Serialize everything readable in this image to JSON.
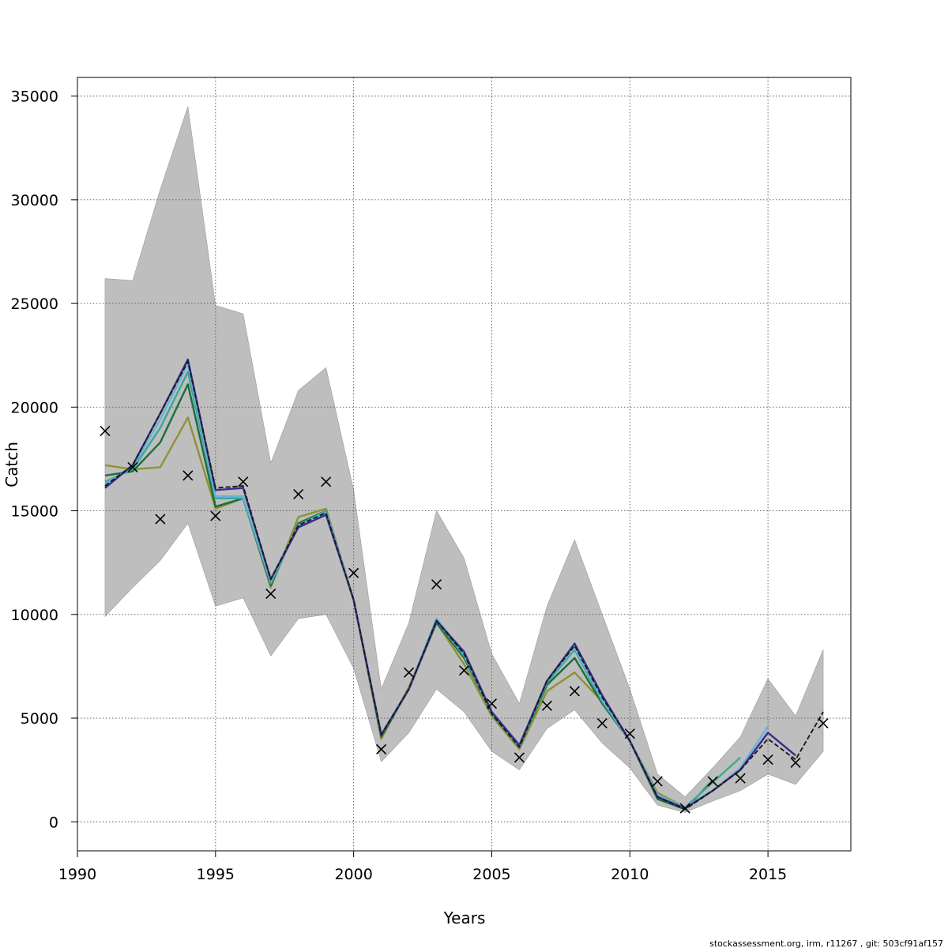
{
  "chart_data": {
    "type": "line",
    "title": "",
    "xlabel": "Years",
    "ylabel": "Catch",
    "xlim": [
      1990,
      2018
    ],
    "ylim": [
      -1400,
      35900
    ],
    "xticks": [
      1990,
      1995,
      2000,
      2005,
      2010,
      2015
    ],
    "yticks": [
      0,
      5000,
      10000,
      15000,
      20000,
      25000,
      30000,
      35000
    ],
    "grid": true,
    "band": {
      "x": [
        1991,
        1992,
        1993,
        1994,
        1995,
        1996,
        1997,
        1998,
        1999,
        2000,
        2001,
        2002,
        2003,
        2004,
        2005,
        2006,
        2007,
        2008,
        2009,
        2010,
        2011,
        2012,
        2013,
        2014,
        2015,
        2016,
        2017
      ],
      "upper": [
        26200,
        26100,
        30500,
        34500,
        24900,
        24500,
        17300,
        20800,
        21900,
        16000,
        6400,
        9600,
        15000,
        12700,
        8100,
        5700,
        10400,
        13600,
        10000,
        6400,
        2300,
        1200,
        2600,
        4100,
        6900,
        5100,
        8300
      ],
      "lower": [
        9900,
        11300,
        12600,
        14400,
        10400,
        10800,
        8000,
        9800,
        10000,
        7400,
        2900,
        4300,
        6400,
        5300,
        3400,
        2500,
        4500,
        5400,
        3800,
        2600,
        800,
        450,
        1000,
        1500,
        2300,
        1800,
        3400
      ],
      "color": "#bebebe"
    },
    "observed": {
      "x": [
        1991,
        1992,
        1993,
        1994,
        1995,
        1996,
        1997,
        1998,
        1999,
        2000,
        2001,
        2002,
        2003,
        2004,
        2005,
        2006,
        2007,
        2008,
        2009,
        2010,
        2011,
        2012,
        2013,
        2014,
        2015,
        2016,
        2017
      ],
      "y": [
        18850,
        17100,
        14600,
        16700,
        14750,
        16400,
        11000,
        15800,
        16400,
        12000,
        3500,
        7200,
        11450,
        7300,
        5700,
        3100,
        5600,
        6300,
        4750,
        4250,
        1950,
        650,
        1950,
        2100,
        3000,
        2850,
        4750
      ]
    },
    "series": [
      {
        "color": "#1a1a1a",
        "dashed": true,
        "x": [
          1991,
          1992,
          1993,
          1994,
          1995,
          1996,
          1997,
          1998,
          1999,
          2000,
          2001,
          2002,
          2003,
          2004,
          2005,
          2006,
          2007,
          2008,
          2009,
          2010,
          2011,
          2012,
          2013,
          2014,
          2015,
          2016,
          2017
        ],
        "y": [
          16200,
          17200,
          19700,
          22200,
          16100,
          16200,
          11700,
          14300,
          14900,
          10700,
          4200,
          6400,
          9700,
          8100,
          5200,
          3600,
          6800,
          8500,
          6000,
          3900,
          1200,
          600,
          1500,
          2500,
          4000,
          3000,
          5300
        ]
      },
      {
        "color": "#3a2c8c",
        "x": [
          1991,
          1992,
          1993,
          1994,
          1995,
          1996,
          1997,
          1998,
          1999,
          2000,
          2001,
          2002,
          2003,
          2004,
          2005,
          2006,
          2007,
          2008,
          2009,
          2010,
          2011,
          2012,
          2013,
          2014,
          2015,
          2016
        ],
        "y": [
          16100,
          17200,
          19700,
          22300,
          16000,
          16100,
          11700,
          14200,
          14800,
          10700,
          4200,
          6400,
          9700,
          8200,
          5300,
          3700,
          6800,
          8600,
          6100,
          3900,
          1200,
          650,
          1500,
          2500,
          4300,
          3200
        ]
      },
      {
        "color": "#6ab3d8",
        "x": [
          1991,
          1992,
          1993,
          1994,
          1995,
          1996,
          1997,
          1998,
          1999,
          2000,
          2001,
          2002,
          2003,
          2004,
          2005,
          2006,
          2007,
          2008,
          2009,
          2010,
          2011,
          2012,
          2013,
          2014,
          2015
        ],
        "y": [
          16300,
          17100,
          19400,
          22100,
          15700,
          15700,
          11600,
          14300,
          14900,
          10700,
          4200,
          6400,
          9800,
          8100,
          5300,
          3700,
          6800,
          8400,
          5900,
          3900,
          1300,
          700,
          1500,
          2600,
          4600
        ]
      },
      {
        "color": "#3aa898",
        "x": [
          1991,
          1992,
          1993,
          1994,
          1995,
          1996,
          1997,
          1998,
          1999,
          2000,
          2001,
          2002,
          2003,
          2004,
          2005,
          2006,
          2007,
          2008,
          2009,
          2010,
          2011,
          2012,
          2013,
          2014
        ],
        "y": [
          16400,
          17000,
          19000,
          21700,
          15600,
          15600,
          11500,
          14300,
          15000,
          10700,
          4200,
          6400,
          9700,
          8000,
          5200,
          3600,
          6700,
          8300,
          5800,
          3900,
          1300,
          700,
          1900,
          3100
        ]
      },
      {
        "color": "#1a6e3e",
        "x": [
          1991,
          1992,
          1993,
          1994,
          1995,
          1996,
          1997,
          1998,
          1999,
          2000,
          2001,
          2002,
          2003,
          2004,
          2005,
          2006,
          2007,
          2008,
          2009,
          2010,
          2011,
          2012,
          2013
        ],
        "y": [
          16700,
          16900,
          18300,
          21100,
          15200,
          15600,
          11400,
          14400,
          15000,
          10700,
          4100,
          6400,
          9600,
          7900,
          5200,
          3600,
          6600,
          7900,
          5700,
          3900,
          1100,
          600,
          2000
        ]
      },
      {
        "color": "#8e9232",
        "x": [
          1991,
          1992,
          1993,
          1994,
          1995,
          1996,
          1997,
          1998,
          1999,
          2000,
          2001,
          2002,
          2003,
          2004,
          2005,
          2006,
          2007,
          2008,
          2009,
          2010,
          2011,
          2012
        ],
        "y": [
          17200,
          17000,
          17100,
          19500,
          15100,
          15600,
          11300,
          14700,
          15100,
          10700,
          4000,
          6500,
          9600,
          7600,
          5100,
          3500,
          6300,
          7200,
          5800,
          3900,
          1400,
          700
        ]
      }
    ],
    "footer": "stockassessment.org, irm, r11267 , git: 503cf91af157"
  }
}
